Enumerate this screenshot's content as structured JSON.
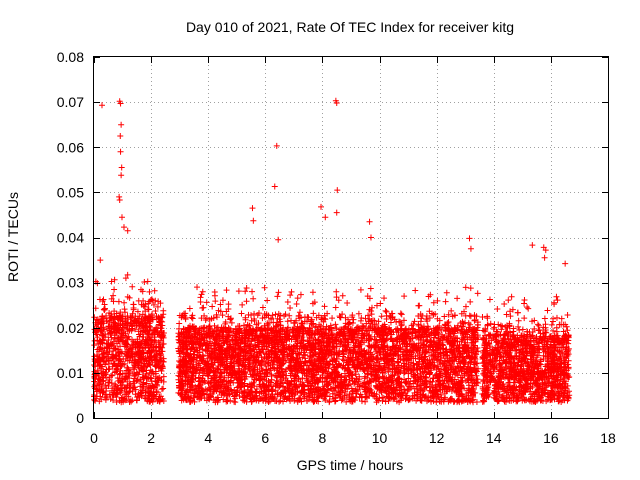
{
  "chart_data": {
    "type": "scatter",
    "title": "Day 010 of 2021, Rate Of TEC Index for receiver kitg",
    "xlabel": "GPS time / hours",
    "ylabel": "ROTI / TECUs",
    "xlim": [
      0,
      18
    ],
    "ylim": [
      0,
      0.08
    ],
    "x_ticks": [
      "0",
      "2",
      "4",
      "6",
      "8",
      "10",
      "12",
      "14",
      "16",
      "18"
    ],
    "y_ticks": [
      "0",
      "0.01",
      "0.02",
      "0.03",
      "0.04",
      "0.05",
      "0.06",
      "0.07",
      "0.08"
    ],
    "grid": true,
    "marker": "+",
    "color": "#ff0000",
    "series": [
      {
        "name": "ROTI",
        "segments": [
          {
            "x_start": 0.0,
            "x_end": 2.45,
            "baseline": 0.012,
            "spread": 0.012
          },
          {
            "x_start": 2.95,
            "x_end": 13.45,
            "baseline": 0.01,
            "spread": 0.011
          },
          {
            "x_start": 13.6,
            "x_end": 16.65,
            "baseline": 0.009,
            "spread": 0.01
          }
        ],
        "peaks": [
          {
            "x": 0.28,
            "y": 0.0693
          },
          {
            "x": 0.9,
            "y": 0.0702
          },
          {
            "x": 0.93,
            "y": 0.0697
          },
          {
            "x": 0.95,
            "y": 0.065
          },
          {
            "x": 0.92,
            "y": 0.0625
          },
          {
            "x": 0.93,
            "y": 0.059
          },
          {
            "x": 0.97,
            "y": 0.0555
          },
          {
            "x": 0.95,
            "y": 0.0538
          },
          {
            "x": 0.88,
            "y": 0.049
          },
          {
            "x": 0.9,
            "y": 0.0483
          },
          {
            "x": 0.98,
            "y": 0.0445
          },
          {
            "x": 1.05,
            "y": 0.0423
          },
          {
            "x": 1.18,
            "y": 0.0415
          },
          {
            "x": 0.22,
            "y": 0.035
          },
          {
            "x": 5.55,
            "y": 0.0465
          },
          {
            "x": 5.58,
            "y": 0.0437
          },
          {
            "x": 6.4,
            "y": 0.0603
          },
          {
            "x": 6.33,
            "y": 0.0513
          },
          {
            "x": 6.45,
            "y": 0.0395
          },
          {
            "x": 7.95,
            "y": 0.0468
          },
          {
            "x": 8.1,
            "y": 0.0445
          },
          {
            "x": 8.47,
            "y": 0.0703
          },
          {
            "x": 8.5,
            "y": 0.0698
          },
          {
            "x": 8.52,
            "y": 0.0505
          },
          {
            "x": 8.5,
            "y": 0.0455
          },
          {
            "x": 9.65,
            "y": 0.0435
          },
          {
            "x": 9.7,
            "y": 0.04
          },
          {
            "x": 13.15,
            "y": 0.0398
          },
          {
            "x": 13.2,
            "y": 0.0375
          },
          {
            "x": 15.35,
            "y": 0.0383
          },
          {
            "x": 15.75,
            "y": 0.0378
          },
          {
            "x": 15.82,
            "y": 0.0372
          },
          {
            "x": 15.78,
            "y": 0.0355
          },
          {
            "x": 16.5,
            "y": 0.0342
          }
        ]
      }
    ]
  }
}
